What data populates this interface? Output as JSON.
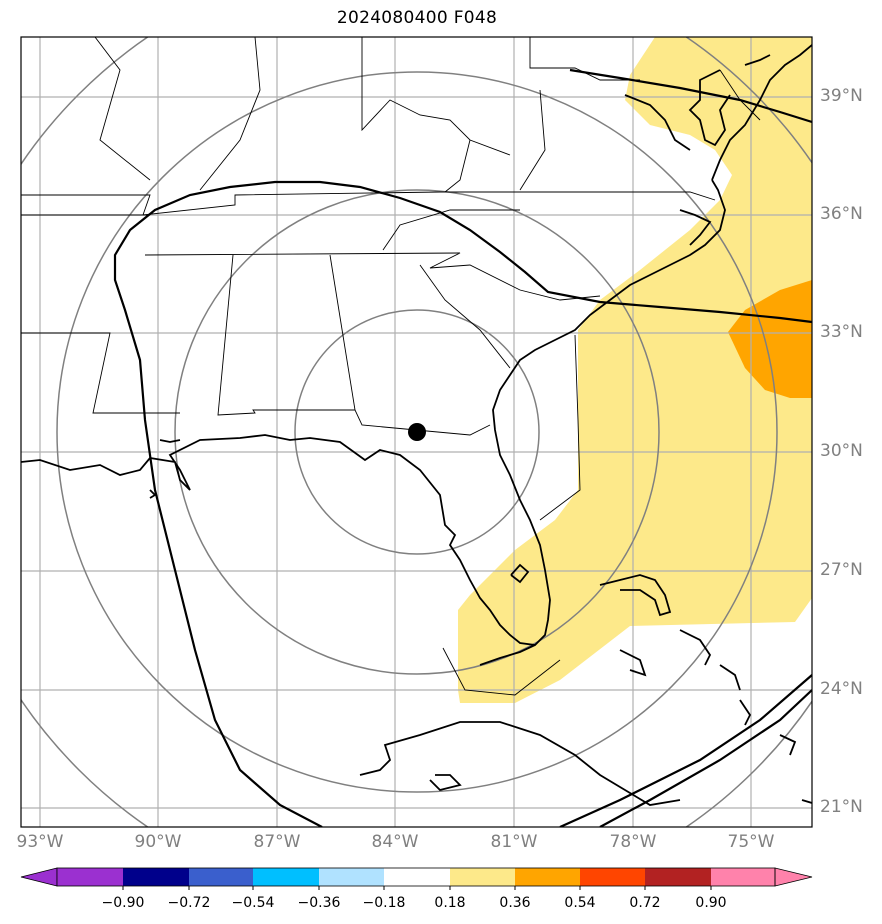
{
  "title": "2024080400 F048",
  "map": {
    "lat_labels": [
      "39°N",
      "36°N",
      "33°N",
      "30°N",
      "27°N",
      "24°N",
      "21°N"
    ],
    "lon_labels": [
      "93°W",
      "90°W",
      "87°W",
      "84°W",
      "81°W",
      "78°W",
      "75°W"
    ],
    "center_marker": {
      "lat": 30.6,
      "lon": -83.4
    }
  },
  "colorbar": {
    "ticks": [
      "−0.90",
      "−0.72",
      "−0.54",
      "−0.36",
      "−0.18",
      "0.18",
      "0.36",
      "0.54",
      "0.72",
      "0.90"
    ],
    "colors": [
      "#9b30d0",
      "#00008b",
      "#3a5fcd",
      "#00bfff",
      "#b0e2ff",
      "#ffffff",
      "#fde98a",
      "#ffa500",
      "#ff4500",
      "#b22222",
      "#ff82ab"
    ]
  }
}
